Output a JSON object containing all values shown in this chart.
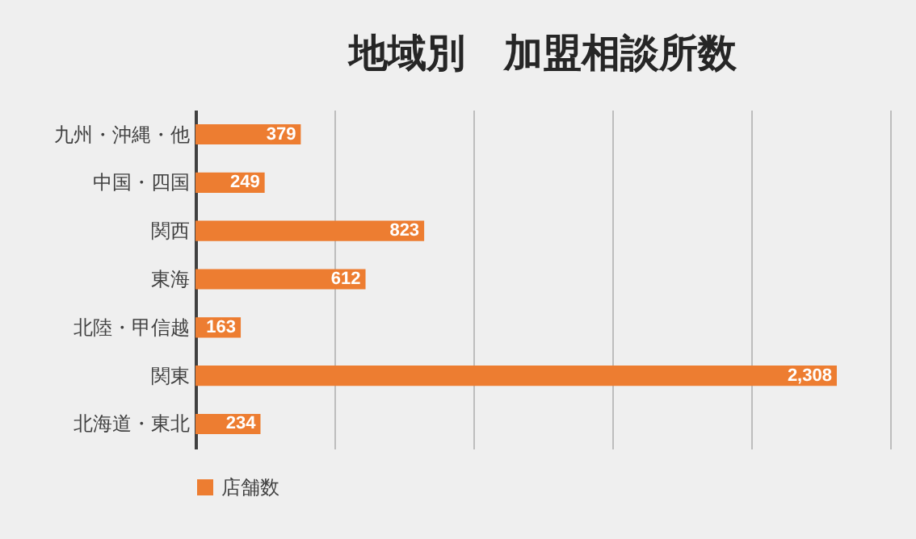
{
  "chart_data": {
    "type": "bar",
    "orientation": "horizontal",
    "title": "地域別　加盟相談所数",
    "categories": [
      "九州・沖縄・他",
      "中国・四国",
      "関西",
      "東海",
      "北陸・甲信越",
      "関東",
      "北海道・東北"
    ],
    "series": [
      {
        "name": "店舗数",
        "color": "#ed7d31",
        "values": [
          379,
          249,
          823,
          612,
          163,
          2308,
          234
        ],
        "value_labels": [
          "379",
          "249",
          "823",
          "612",
          "163",
          "2,308",
          "234"
        ]
      }
    ],
    "xlim": [
      0,
      2500
    ],
    "xticks": [
      {
        "value": 0,
        "label": null
      },
      {
        "value": 500,
        "label": null
      },
      {
        "value": 1000,
        "label": null
      },
      {
        "value": 1500,
        "label": null
      },
      {
        "value": 2000,
        "label": null
      },
      {
        "value": 2500,
        "label": null
      }
    ],
    "tick_labels": "y",
    "grid": "x",
    "legend": "bottom"
  }
}
